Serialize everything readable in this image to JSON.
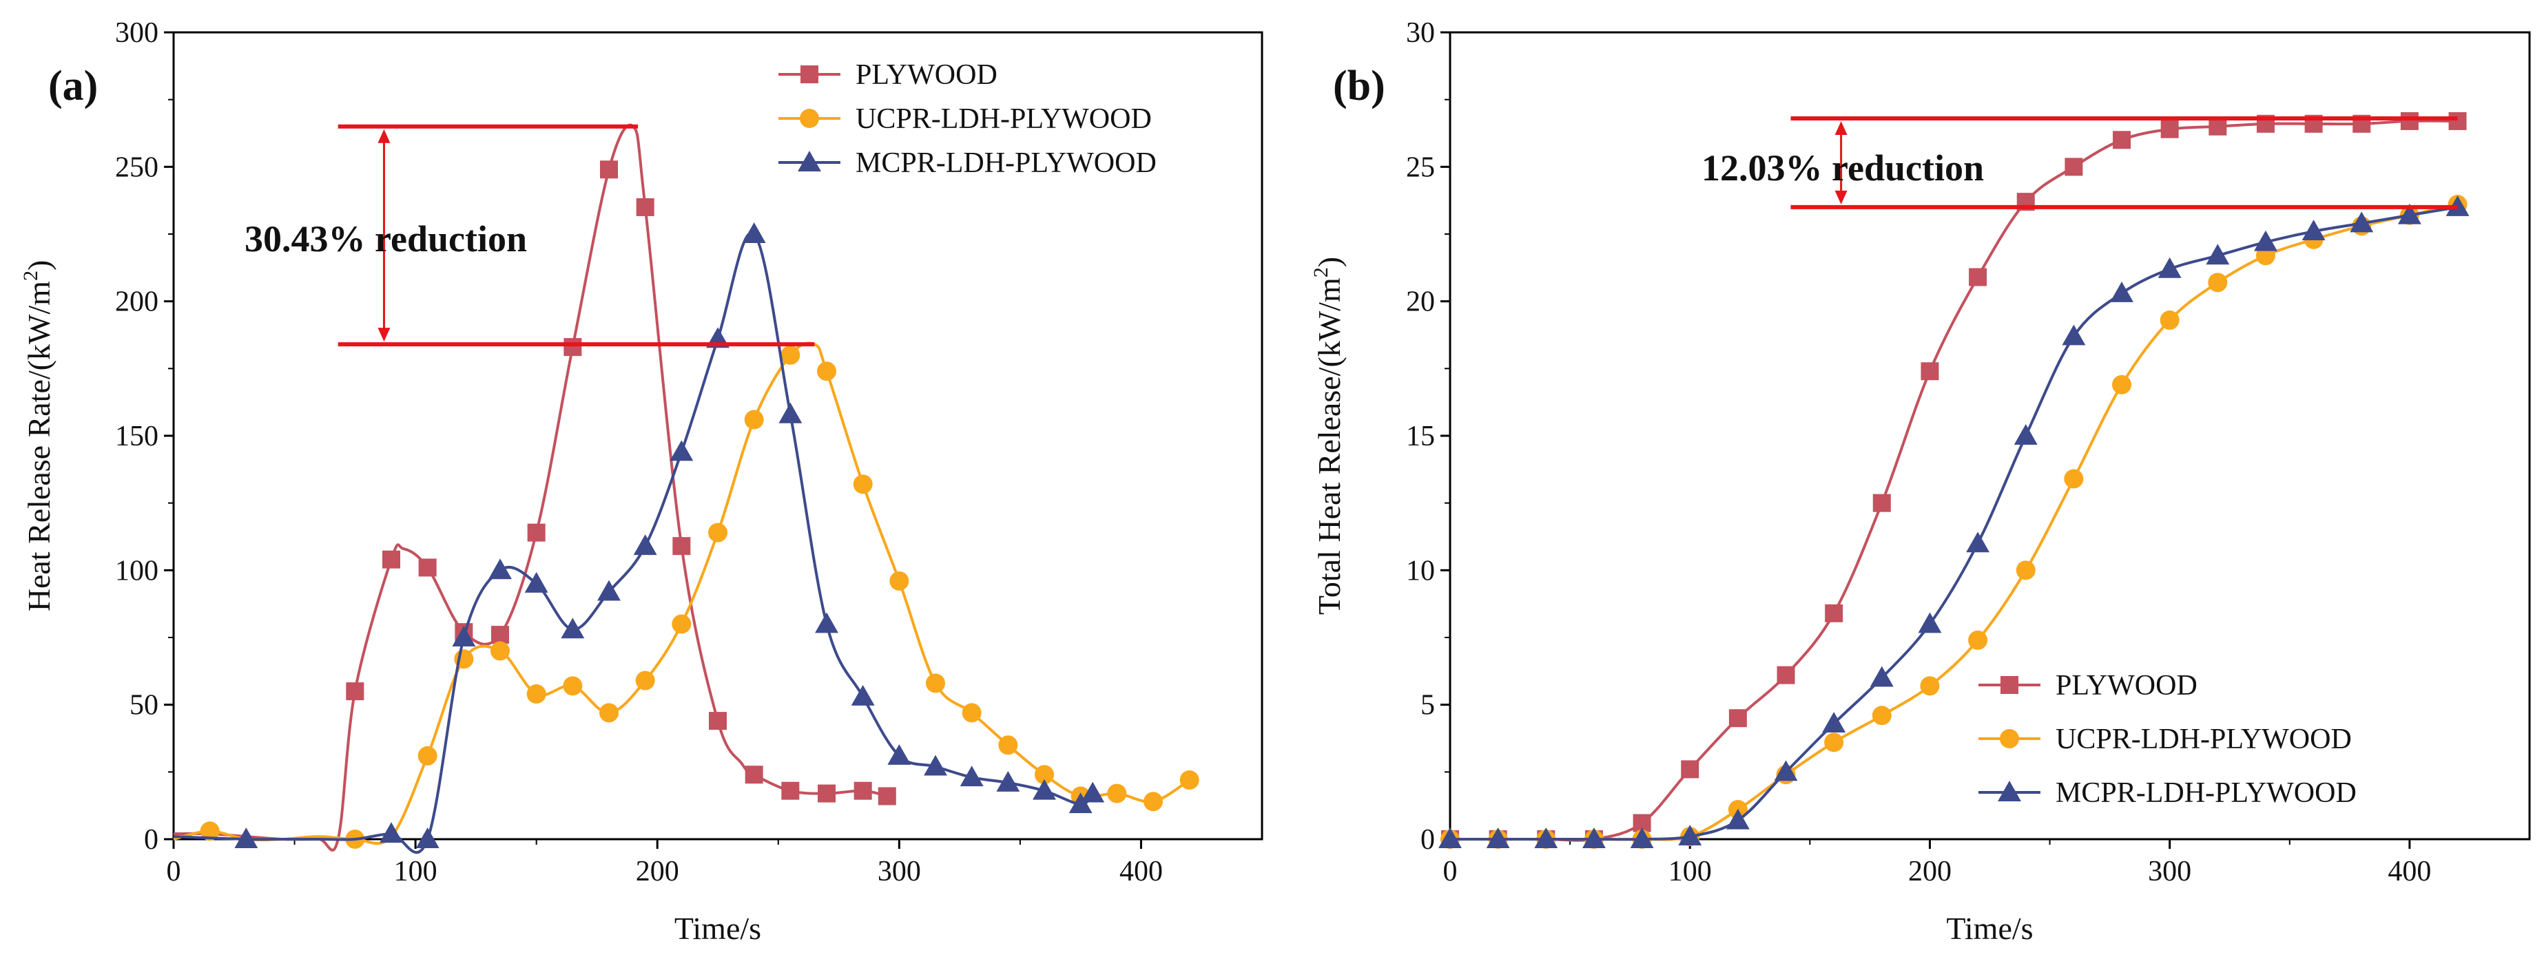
{
  "colors": {
    "plywood": "#c4515e",
    "ucpr": "#f9a71b",
    "mcpr": "#3d4a8c",
    "annotation": "#e8141b",
    "axis": "#000000"
  },
  "chart_data": [
    {
      "type": "line",
      "panel_label": "(a)",
      "xlabel": "Time/s",
      "ylabel": "Heat Release Rate/(kW/m",
      "ylabel_sup": "2",
      "ylabel_close": ")",
      "xlim": [
        0,
        450
      ],
      "ylim": [
        0,
        300
      ],
      "xticks": [
        0,
        100,
        200,
        300,
        400
      ],
      "yticks": [
        0,
        50,
        100,
        150,
        200,
        250,
        300
      ],
      "legend_position": "top-right",
      "annotation": {
        "text": "30.43% reduction",
        "upper_y": 265,
        "lower_y": 184,
        "upper_x_range": [
          68,
          192
        ],
        "lower_x_range": [
          68,
          265
        ],
        "arrow_x": 87
      },
      "series": [
        {
          "name": "PLYWOOD",
          "color_key": "plywood",
          "marker": "square",
          "x": [
            0,
            15,
            30,
            45,
            60,
            68,
            75,
            90,
            95,
            105,
            120,
            135,
            150,
            165,
            180,
            190,
            195,
            210,
            225,
            235,
            240,
            255,
            270,
            285,
            295
          ],
          "y": [
            2,
            2,
            1,
            0,
            0,
            0,
            55,
            104,
            108,
            101,
            77,
            76,
            114,
            183,
            249,
            265,
            235,
            109,
            44,
            28,
            24,
            18,
            17,
            18,
            16
          ],
          "markers": [
            [
              75,
              55
            ],
            [
              90,
              104
            ],
            [
              105,
              101
            ],
            [
              120,
              77
            ],
            [
              135,
              76
            ],
            [
              150,
              114
            ],
            [
              165,
              183
            ],
            [
              180,
              249
            ],
            [
              195,
              235
            ],
            [
              210,
              109
            ],
            [
              225,
              44
            ],
            [
              240,
              24
            ],
            [
              255,
              18
            ],
            [
              270,
              17
            ],
            [
              285,
              18
            ],
            [
              295,
              16
            ]
          ]
        },
        {
          "name": "UCPR-LDH-PLYWOOD",
          "color_key": "ucpr",
          "marker": "circle",
          "x": [
            0,
            15,
            30,
            45,
            60,
            75,
            90,
            105,
            120,
            135,
            150,
            165,
            180,
            195,
            210,
            225,
            240,
            255,
            265,
            270,
            285,
            300,
            315,
            330,
            345,
            360,
            375,
            390,
            405,
            420
          ],
          "y": [
            0,
            3,
            0,
            0,
            1,
            0,
            1,
            31,
            67,
            70,
            54,
            57,
            47,
            59,
            80,
            114,
            156,
            180,
            184,
            174,
            132,
            96,
            58,
            47,
            35,
            24,
            16,
            17,
            14,
            22
          ],
          "markers": [
            [
              15,
              3
            ],
            [
              75,
              0
            ],
            [
              105,
              31
            ],
            [
              120,
              67
            ],
            [
              135,
              70
            ],
            [
              150,
              54
            ],
            [
              165,
              57
            ],
            [
              180,
              47
            ],
            [
              195,
              59
            ],
            [
              210,
              80
            ],
            [
              225,
              114
            ],
            [
              240,
              156
            ],
            [
              255,
              180
            ],
            [
              270,
              174
            ],
            [
              285,
              132
            ],
            [
              300,
              96
            ],
            [
              315,
              58
            ],
            [
              330,
              47
            ],
            [
              345,
              35
            ],
            [
              360,
              24
            ],
            [
              375,
              16
            ],
            [
              390,
              17
            ],
            [
              405,
              14
            ],
            [
              420,
              22
            ]
          ]
        },
        {
          "name": "MCPR-LDH-PLYWOOD",
          "color_key": "mcpr",
          "marker": "triangle",
          "x": [
            0,
            30,
            45,
            60,
            75,
            90,
            105,
            120,
            135,
            150,
            165,
            180,
            195,
            210,
            225,
            240,
            255,
            270,
            285,
            300,
            315,
            330,
            345,
            360,
            375,
            380
          ],
          "y": [
            1,
            0,
            0,
            0,
            0,
            2,
            0,
            75,
            100,
            95,
            78,
            92,
            109,
            144,
            186,
            225,
            158,
            80,
            53,
            31,
            27,
            23,
            21,
            18,
            13,
            17
          ],
          "markers": [
            [
              30,
              0
            ],
            [
              90,
              2
            ],
            [
              105,
              0
            ],
            [
              120,
              75
            ],
            [
              135,
              100
            ],
            [
              150,
              95
            ],
            [
              165,
              78
            ],
            [
              180,
              92
            ],
            [
              195,
              109
            ],
            [
              210,
              144
            ],
            [
              225,
              186
            ],
            [
              240,
              225
            ],
            [
              255,
              158
            ],
            [
              270,
              80
            ],
            [
              285,
              53
            ],
            [
              300,
              31
            ],
            [
              315,
              27
            ],
            [
              330,
              23
            ],
            [
              345,
              21
            ],
            [
              360,
              18
            ],
            [
              375,
              13
            ],
            [
              380,
              17
            ]
          ]
        }
      ]
    },
    {
      "type": "line",
      "panel_label": "(b)",
      "xlabel": "Time/s",
      "ylabel": "Total Heat Release/(kW/m",
      "ylabel_sup": "2",
      "ylabel_close": ")",
      "xlim": [
        0,
        450
      ],
      "ylim": [
        0,
        30
      ],
      "xticks": [
        0,
        100,
        200,
        300,
        400
      ],
      "yticks": [
        0,
        5,
        10,
        15,
        20,
        25,
        30
      ],
      "legend_position": "bottom-right",
      "annotation": {
        "text": "12.03% reduction",
        "upper_y": 26.8,
        "lower_y": 23.5,
        "upper_x_range": [
          142,
          420
        ],
        "lower_x_range": [
          142,
          420
        ],
        "arrow_x": 163
      },
      "series": [
        {
          "name": "PLYWOOD",
          "color_key": "plywood",
          "marker": "square",
          "x": [
            0,
            20,
            40,
            60,
            80,
            100,
            120,
            140,
            160,
            180,
            200,
            220,
            240,
            260,
            280,
            300,
            320,
            340,
            360,
            380,
            400,
            420
          ],
          "y": [
            0,
            0,
            0,
            0,
            0.6,
            2.6,
            4.5,
            6.1,
            8.4,
            12.5,
            17.4,
            20.9,
            23.7,
            25.0,
            26.0,
            26.4,
            26.5,
            26.6,
            26.6,
            26.6,
            26.7,
            26.7
          ]
        },
        {
          "name": "UCPR-LDH-PLYWOOD",
          "color_key": "ucpr",
          "marker": "circle",
          "x": [
            0,
            20,
            40,
            60,
            80,
            100,
            120,
            140,
            160,
            180,
            200,
            220,
            240,
            260,
            280,
            300,
            320,
            340,
            360,
            380,
            400,
            420
          ],
          "y": [
            0,
            0,
            0,
            0,
            0,
            0.1,
            1.1,
            2.4,
            3.6,
            4.6,
            5.7,
            7.4,
            10.0,
            13.4,
            16.9,
            19.3,
            20.7,
            21.7,
            22.3,
            22.8,
            23.2,
            23.6
          ]
        },
        {
          "name": "MCPR-LDH-PLYWOOD",
          "color_key": "mcpr",
          "marker": "triangle",
          "x": [
            0,
            20,
            40,
            60,
            80,
            100,
            120,
            140,
            160,
            180,
            200,
            220,
            240,
            260,
            280,
            300,
            320,
            340,
            360,
            380,
            400,
            420
          ],
          "y": [
            0,
            0,
            0,
            0,
            0,
            0.1,
            0.7,
            2.5,
            4.3,
            6.0,
            8.0,
            11.0,
            15.0,
            18.7,
            20.3,
            21.2,
            21.7,
            22.2,
            22.6,
            22.9,
            23.2,
            23.5
          ]
        }
      ]
    }
  ]
}
